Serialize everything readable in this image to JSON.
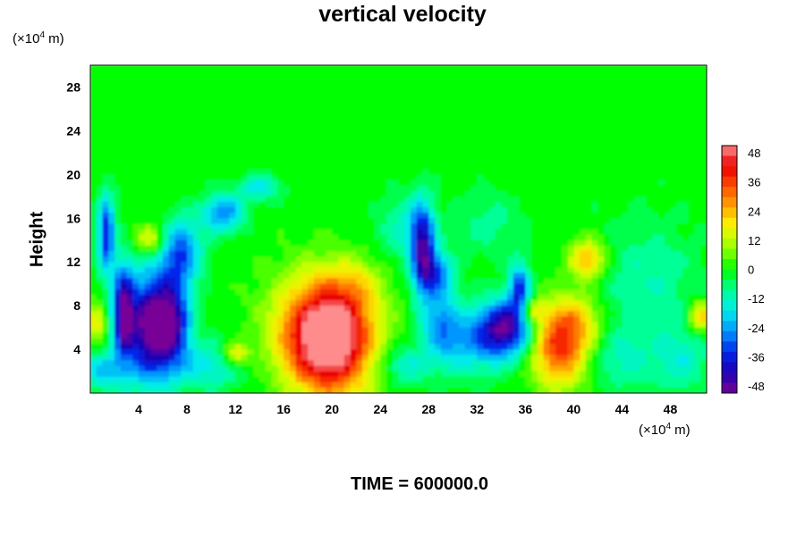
{
  "chart_data": {
    "type": "heatmap",
    "title": "vertical velocity",
    "ylabel": "Height",
    "x_unit_prefix": "(×10",
    "x_unit_exp": "4",
    "x_unit_suffix": " m)",
    "y_unit_prefix": "(×10",
    "y_unit_exp": "4",
    "y_unit_suffix": " m)",
    "footer": "TIME = 600000.0",
    "xlim": [
      0,
      51
    ],
    "ylim": [
      0,
      30
    ],
    "x_ticks": [
      4,
      8,
      12,
      16,
      20,
      24,
      28,
      32,
      36,
      40,
      44,
      48
    ],
    "y_ticks": [
      4,
      8,
      12,
      16,
      20,
      24,
      28
    ],
    "colorbar": {
      "ticks": [
        48,
        36,
        24,
        12,
        0,
        -12,
        -24,
        -36,
        -48
      ],
      "range": [
        -48,
        48
      ]
    },
    "background_value": 0,
    "features": [
      {
        "x": 20.0,
        "y": 4.5,
        "sx": 2.4,
        "sy": 3.5,
        "value": 48
      },
      {
        "x": 19.0,
        "y": 7.5,
        "sx": 3.0,
        "sy": 3.0,
        "value": 16
      },
      {
        "x": 17.5,
        "y": 4.0,
        "sx": 2.0,
        "sy": 2.5,
        "value": 8
      },
      {
        "x": 38.8,
        "y": 4.2,
        "sx": 1.6,
        "sy": 2.6,
        "value": 34
      },
      {
        "x": 40.5,
        "y": 6.5,
        "sx": 1.5,
        "sy": 1.8,
        "value": 14
      },
      {
        "x": 41.2,
        "y": 12.2,
        "sx": 1.1,
        "sy": 1.3,
        "value": 24
      },
      {
        "x": 5.0,
        "y": 14.0,
        "sx": 1.0,
        "sy": 1.0,
        "value": 18
      },
      {
        "x": 12.0,
        "y": 3.5,
        "sx": 0.8,
        "sy": 0.8,
        "value": 20
      },
      {
        "x": 50.5,
        "y": 7.0,
        "sx": 0.7,
        "sy": 1.0,
        "value": 22
      },
      {
        "x": 0.5,
        "y": 6.5,
        "sx": 0.6,
        "sy": 1.2,
        "value": 18
      },
      {
        "x": 36.5,
        "y": 7.5,
        "sx": 0.8,
        "sy": 0.8,
        "value": 18
      },
      {
        "x": 22.0,
        "y": 10.0,
        "sx": 1.5,
        "sy": 1.5,
        "value": 8
      },
      {
        "x": 4.8,
        "y": 6.0,
        "sx": 1.4,
        "sy": 3.5,
        "value": -46
      },
      {
        "x": 2.7,
        "y": 7.5,
        "sx": 0.6,
        "sy": 3.0,
        "value": -40
      },
      {
        "x": 6.8,
        "y": 6.5,
        "sx": 1.1,
        "sy": 3.0,
        "value": -36
      },
      {
        "x": 1.3,
        "y": 14.5,
        "sx": 0.5,
        "sy": 2.5,
        "value": -34
      },
      {
        "x": 7.5,
        "y": 13.0,
        "sx": 1.2,
        "sy": 2.0,
        "value": -28
      },
      {
        "x": 11.0,
        "y": 16.5,
        "sx": 1.2,
        "sy": 1.2,
        "value": -26
      },
      {
        "x": 14.0,
        "y": 18.8,
        "sx": 1.2,
        "sy": 0.8,
        "value": -16
      },
      {
        "x": 27.5,
        "y": 13.5,
        "sx": 0.7,
        "sy": 2.8,
        "value": -36
      },
      {
        "x": 28.5,
        "y": 11.0,
        "sx": 1.0,
        "sy": 1.5,
        "value": -26
      },
      {
        "x": 29.0,
        "y": 6.5,
        "sx": 1.2,
        "sy": 2.2,
        "value": -20
      },
      {
        "x": 34.3,
        "y": 6.0,
        "sx": 1.5,
        "sy": 1.8,
        "value": -42
      },
      {
        "x": 35.5,
        "y": 9.5,
        "sx": 0.6,
        "sy": 1.8,
        "value": -30
      },
      {
        "x": 31.5,
        "y": 4.5,
        "sx": 2.0,
        "sy": 2.0,
        "value": -18
      },
      {
        "x": 26.0,
        "y": 2.5,
        "sx": 1.5,
        "sy": 1.2,
        "value": -14
      },
      {
        "x": 1.0,
        "y": 2.0,
        "sx": 1.2,
        "sy": 1.2,
        "value": -20
      },
      {
        "x": 10.0,
        "y": 2.5,
        "sx": 1.8,
        "sy": 1.5,
        "value": -16
      },
      {
        "x": 46.0,
        "y": 10.0,
        "sx": 3.0,
        "sy": 4.0,
        "value": -10
      },
      {
        "x": 49.0,
        "y": 3.0,
        "sx": 1.5,
        "sy": 2.0,
        "value": -12
      },
      {
        "x": 26.0,
        "y": 15.0,
        "sx": 1.5,
        "sy": 2.0,
        "value": -12
      },
      {
        "x": 33.0,
        "y": 15.5,
        "sx": 2.0,
        "sy": 2.0,
        "value": -8
      },
      {
        "x": 44.0,
        "y": 3.0,
        "sx": 2.0,
        "sy": 2.0,
        "value": -10
      }
    ]
  }
}
